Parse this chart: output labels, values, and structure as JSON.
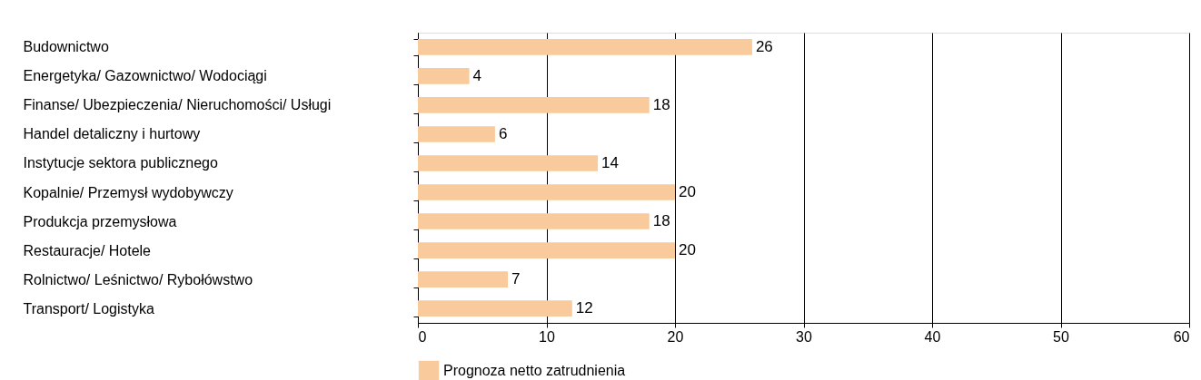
{
  "chart_data": {
    "type": "bar",
    "orientation": "horizontal",
    "categories": [
      "Budownictwo",
      "Energetyka/ Gazownictwo/ Wodociągi",
      "Finanse/ Ubezpieczenia/ Nieruchomości/ Usługi",
      "Handel detaliczny i hurtowy",
      "Instytucje sektora publicznego",
      "Kopalnie/ Przemysł wydobywczy",
      "Produkcja przemysłowa",
      "Restauracje/ Hotele",
      "Rolnictwo/ Leśnictwo/ Rybołówstwo",
      "Transport/ Logistyka"
    ],
    "series": [
      {
        "name": "Prognoza netto zatrudnienia",
        "color": "#f9cb9c",
        "values": [
          26,
          4,
          18,
          6,
          14,
          20,
          18,
          20,
          7,
          12
        ]
      }
    ],
    "xlim": [
      0,
      60
    ],
    "xticks": [
      0,
      10,
      20,
      30,
      40,
      50,
      60
    ],
    "grid": "x",
    "legend": "bottom",
    "data_labels": true
  }
}
